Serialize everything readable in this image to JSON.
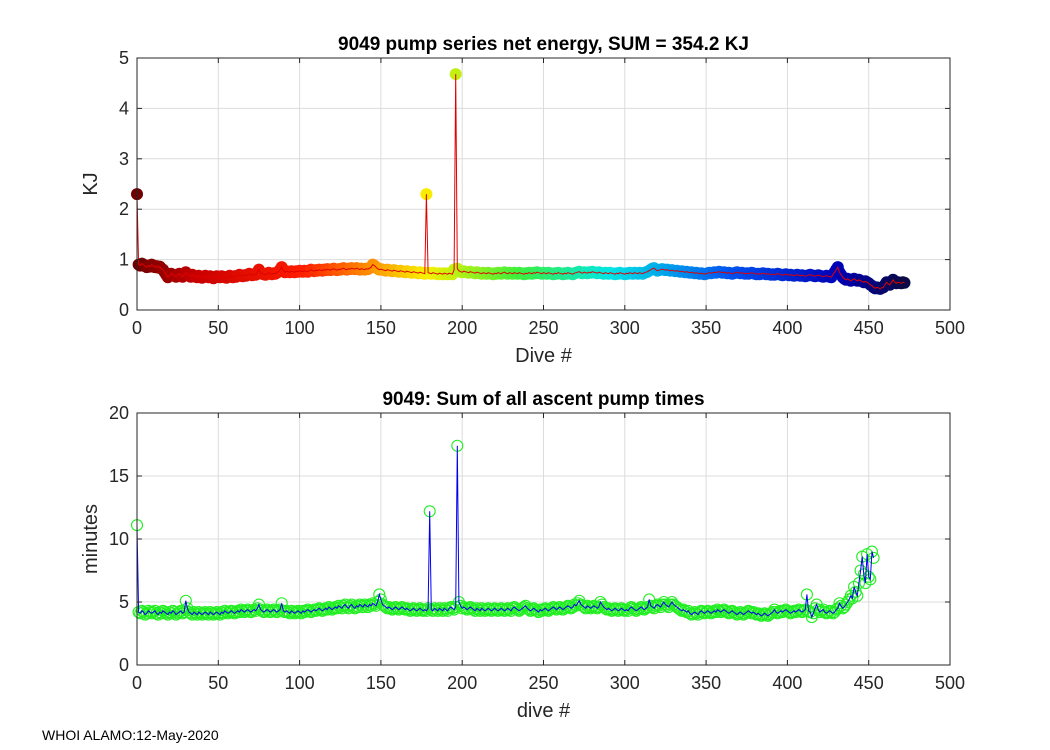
{
  "chart_data": [
    {
      "type": "scatter",
      "title": "9049 pump series net energy, SUM = 354.2 KJ",
      "xlabel": "Dive #",
      "ylabel": "KJ",
      "xlim": [
        0,
        500
      ],
      "ylim": [
        0,
        5
      ],
      "xticks": [
        0,
        50,
        100,
        150,
        200,
        250,
        300,
        350,
        400,
        450,
        500
      ],
      "yticks": [
        0,
        1,
        2,
        3,
        4,
        5
      ],
      "grid": true,
      "line_color": "#e00000",
      "marker_colormap": "jet",
      "x_step": 1,
      "series": [
        {
          "name": "net energy",
          "values": [
            2.3,
            0.9,
            0.88,
            0.92,
            0.9,
            0.87,
            0.85,
            0.88,
            0.86,
            0.9,
            0.88,
            0.85,
            0.87,
            0.84,
            0.86,
            0.82,
            0.8,
            0.75,
            0.7,
            0.65,
            0.68,
            0.72,
            0.7,
            0.68,
            0.66,
            0.7,
            0.72,
            0.68,
            0.66,
            0.7,
            0.75,
            0.7,
            0.68,
            0.66,
            0.7,
            0.68,
            0.66,
            0.65,
            0.68,
            0.66,
            0.64,
            0.66,
            0.68,
            0.66,
            0.65,
            0.67,
            0.65,
            0.63,
            0.65,
            0.67,
            0.66,
            0.65,
            0.67,
            0.66,
            0.65,
            0.64,
            0.66,
            0.68,
            0.66,
            0.65,
            0.67,
            0.66,
            0.68,
            0.7,
            0.68,
            0.67,
            0.69,
            0.68,
            0.7,
            0.72,
            0.7,
            0.69,
            0.71,
            0.7,
            0.75,
            0.8,
            0.74,
            0.72,
            0.71,
            0.7,
            0.72,
            0.74,
            0.72,
            0.71,
            0.73,
            0.72,
            0.74,
            0.76,
            0.8,
            0.85,
            0.78,
            0.75,
            0.77,
            0.76,
            0.75,
            0.77,
            0.76,
            0.75,
            0.77,
            0.76,
            0.78,
            0.77,
            0.76,
            0.78,
            0.77,
            0.76,
            0.78,
            0.8,
            0.78,
            0.77,
            0.79,
            0.78,
            0.8,
            0.79,
            0.78,
            0.8,
            0.79,
            0.81,
            0.8,
            0.79,
            0.81,
            0.82,
            0.8,
            0.79,
            0.81,
            0.8,
            0.82,
            0.83,
            0.81,
            0.8,
            0.82,
            0.81,
            0.83,
            0.82,
            0.81,
            0.83,
            0.82,
            0.8,
            0.82,
            0.81,
            0.8,
            0.82,
            0.81,
            0.83,
            0.85,
            0.9,
            0.88,
            0.85,
            0.82,
            0.8,
            0.81,
            0.8,
            0.79,
            0.78,
            0.8,
            0.79,
            0.78,
            0.77,
            0.79,
            0.78,
            0.77,
            0.76,
            0.78,
            0.77,
            0.76,
            0.75,
            0.77,
            0.76,
            0.75,
            0.74,
            0.76,
            0.75,
            0.74,
            0.73,
            0.75,
            0.74,
            0.73,
            0.72,
            2.3,
            0.74,
            0.73,
            0.72,
            0.74,
            0.73,
            0.72,
            0.71,
            0.73,
            0.72,
            0.71,
            0.73,
            0.72,
            0.71,
            0.73,
            0.72,
            0.71,
            0.8,
            4.68,
            0.82,
            0.78,
            0.76,
            0.75,
            0.77,
            0.76,
            0.75,
            0.74,
            0.76,
            0.75,
            0.74,
            0.73,
            0.75,
            0.74,
            0.73,
            0.72,
            0.74,
            0.73,
            0.72,
            0.74,
            0.73,
            0.72,
            0.71,
            0.73,
            0.72,
            0.74,
            0.73,
            0.72,
            0.74,
            0.75,
            0.73,
            0.72,
            0.74,
            0.73,
            0.72,
            0.74,
            0.73,
            0.72,
            0.74,
            0.73,
            0.72,
            0.71,
            0.73,
            0.72,
            0.74,
            0.73,
            0.72,
            0.74,
            0.73,
            0.75,
            0.74,
            0.73,
            0.72,
            0.74,
            0.73,
            0.72,
            0.74,
            0.73,
            0.72,
            0.71,
            0.73,
            0.72,
            0.74,
            0.73,
            0.72,
            0.71,
            0.73,
            0.72,
            0.74,
            0.73,
            0.72,
            0.71,
            0.73,
            0.74,
            0.75,
            0.76,
            0.74,
            0.73,
            0.75,
            0.74,
            0.73,
            0.75,
            0.74,
            0.76,
            0.75,
            0.74,
            0.73,
            0.75,
            0.74,
            0.73,
            0.72,
            0.74,
            0.73,
            0.72,
            0.74,
            0.73,
            0.72,
            0.71,
            0.73,
            0.72,
            0.74,
            0.73,
            0.72,
            0.71,
            0.73,
            0.72,
            0.74,
            0.73,
            0.72,
            0.74,
            0.73,
            0.72,
            0.74,
            0.73,
            0.72,
            0.74,
            0.75,
            0.76,
            0.78,
            0.8,
            0.82,
            0.83,
            0.8,
            0.78,
            0.79,
            0.8,
            0.81,
            0.8,
            0.79,
            0.8,
            0.79,
            0.78,
            0.79,
            0.78,
            0.77,
            0.78,
            0.77,
            0.76,
            0.77,
            0.76,
            0.75,
            0.76,
            0.75,
            0.74,
            0.75,
            0.74,
            0.73,
            0.74,
            0.73,
            0.72,
            0.73,
            0.72,
            0.71,
            0.72,
            0.73,
            0.74,
            0.73,
            0.74,
            0.75,
            0.74,
            0.75,
            0.76,
            0.75,
            0.74,
            0.75,
            0.74,
            0.73,
            0.74,
            0.73,
            0.72,
            0.73,
            0.74,
            0.75,
            0.74,
            0.73,
            0.74,
            0.73,
            0.72,
            0.73,
            0.72,
            0.73,
            0.74,
            0.73,
            0.72,
            0.71,
            0.72,
            0.71,
            0.72,
            0.73,
            0.72,
            0.71,
            0.72,
            0.71,
            0.7,
            0.71,
            0.7,
            0.71,
            0.72,
            0.71,
            0.7,
            0.69,
            0.7,
            0.71,
            0.7,
            0.69,
            0.7,
            0.69,
            0.68,
            0.69,
            0.7,
            0.69,
            0.68,
            0.69,
            0.68,
            0.67,
            0.68,
            0.69,
            0.7,
            0.69,
            0.68,
            0.67,
            0.68,
            0.69,
            0.68,
            0.67,
            0.66,
            0.67,
            0.68,
            0.67,
            0.66,
            0.65,
            0.7,
            0.75,
            0.8,
            0.85,
            0.75,
            0.7,
            0.65,
            0.62,
            0.6,
            0.62,
            0.6,
            0.58,
            0.6,
            0.62,
            0.6,
            0.58,
            0.6,
            0.58,
            0.57,
            0.55,
            0.57,
            0.55,
            0.53,
            0.5,
            0.48,
            0.45,
            0.43,
            0.45,
            0.44,
            0.42,
            0.44,
            0.45,
            0.5,
            0.55,
            0.52,
            0.5,
            0.55,
            0.6,
            0.55,
            0.53,
            0.55,
            0.54,
            0.53,
            0.55,
            0.54
          ]
        }
      ]
    },
    {
      "type": "scatter",
      "title": "9049: Sum of all ascent pump times",
      "xlabel": "dive #",
      "ylabel": "minutes",
      "xlim": [
        0,
        500
      ],
      "ylim": [
        0,
        20
      ],
      "xticks": [
        0,
        50,
        100,
        150,
        200,
        250,
        300,
        350,
        400,
        450,
        500
      ],
      "yticks": [
        0,
        5,
        10,
        15,
        20
      ],
      "grid": true,
      "line_color": "#0000ee",
      "marker_color": "#22ee22",
      "x_step": 1,
      "series": [
        {
          "name": "ascent pump time",
          "values": [
            11.1,
            4.2,
            4.1,
            4.3,
            4.2,
            4.0,
            4.1,
            4.3,
            4.2,
            4.1,
            4.2,
            4.3,
            4.1,
            4.0,
            4.2,
            4.1,
            4.3,
            4.2,
            4.1,
            4.0,
            4.2,
            4.1,
            4.3,
            4.2,
            4.0,
            4.1,
            4.2,
            4.3,
            4.1,
            4.2,
            5.1,
            4.5,
            4.2,
            4.1,
            4.0,
            4.2,
            4.1,
            4.0,
            4.2,
            4.1,
            4.0,
            4.1,
            4.2,
            4.1,
            4.0,
            4.2,
            4.1,
            4.0,
            4.1,
            4.2,
            4.1,
            4.0,
            4.2,
            4.1,
            4.3,
            4.2,
            4.1,
            4.2,
            4.3,
            4.2,
            4.1,
            4.2,
            4.3,
            4.2,
            4.4,
            4.3,
            4.2,
            4.3,
            4.4,
            4.3,
            4.2,
            4.3,
            4.4,
            4.3,
            4.5,
            4.8,
            4.4,
            4.3,
            4.2,
            4.3,
            4.4,
            4.3,
            4.2,
            4.3,
            4.4,
            4.3,
            4.2,
            4.3,
            4.4,
            4.9,
            4.3,
            4.2,
            4.3,
            4.2,
            4.1,
            4.3,
            4.2,
            4.1,
            4.2,
            4.3,
            4.2,
            4.1,
            4.3,
            4.2,
            4.3,
            4.4,
            4.3,
            4.2,
            4.3,
            4.4,
            4.3,
            4.4,
            4.5,
            4.4,
            4.3,
            4.4,
            4.5,
            4.4,
            4.6,
            4.5,
            4.4,
            4.5,
            4.6,
            4.5,
            4.7,
            4.6,
            4.5,
            4.7,
            4.8,
            4.6,
            4.5,
            4.7,
            4.8,
            4.6,
            4.5,
            4.7,
            4.6,
            4.8,
            4.7,
            4.6,
            4.8,
            4.7,
            4.6,
            4.8,
            4.7,
            4.9,
            4.8,
            4.7,
            5.0,
            5.6,
            5.2,
            4.8,
            4.7,
            4.6,
            4.5,
            4.6,
            4.5,
            4.4,
            4.5,
            4.6,
            4.5,
            4.4,
            4.5,
            4.6,
            4.5,
            4.4,
            4.5,
            4.4,
            4.3,
            4.4,
            4.5,
            4.4,
            4.3,
            4.4,
            4.5,
            4.4,
            4.3,
            4.4,
            4.3,
            4.5,
            12.2,
            4.4,
            4.3,
            4.5,
            4.4,
            4.3,
            4.5,
            4.4,
            4.3,
            4.5,
            4.4,
            4.3,
            4.5,
            4.6,
            4.5,
            4.4,
            4.6,
            17.4,
            5.0,
            4.7,
            4.5,
            4.6,
            4.5,
            4.4,
            4.5,
            4.6,
            4.5,
            4.4,
            4.3,
            4.5,
            4.4,
            4.3,
            4.5,
            4.4,
            4.3,
            4.4,
            4.5,
            4.4,
            4.3,
            4.4,
            4.5,
            4.4,
            4.3,
            4.4,
            4.5,
            4.4,
            4.3,
            4.4,
            4.5,
            4.4,
            4.3,
            4.5,
            4.6,
            4.5,
            4.4,
            4.3,
            4.4,
            4.5,
            4.6,
            4.7,
            4.5,
            4.4,
            4.3,
            4.4,
            4.5,
            4.4,
            4.3,
            4.2,
            4.4,
            4.3,
            4.4,
            4.5,
            4.4,
            4.3,
            4.4,
            4.5,
            4.6,
            4.5,
            4.4,
            4.5,
            4.6,
            4.5,
            4.4,
            4.5,
            4.6,
            4.7,
            4.6,
            4.5,
            4.6,
            4.8,
            4.7,
            4.9,
            5.1,
            4.8,
            4.7,
            4.6,
            4.5,
            4.7,
            4.6,
            4.5,
            4.6,
            4.7,
            4.6,
            4.5,
            4.6,
            5.0,
            4.8,
            4.6,
            4.5,
            4.4,
            4.5,
            4.4,
            4.3,
            4.4,
            4.5,
            4.4,
            4.3,
            4.4,
            4.5,
            4.4,
            4.3,
            4.4,
            4.3,
            4.5,
            4.6,
            4.5,
            4.4,
            4.3,
            4.4,
            4.5,
            4.6,
            4.5,
            4.4,
            4.5,
            4.6,
            5.2,
            4.7,
            4.6,
            4.5,
            4.7,
            4.8,
            4.7,
            4.6,
            4.8,
            5.0,
            4.8,
            4.7,
            4.6,
            4.8,
            5.0,
            4.8,
            4.7,
            4.6,
            4.5,
            4.4,
            4.3,
            4.4,
            4.3,
            4.2,
            4.3,
            4.1,
            4.0,
            4.1,
            4.2,
            4.1,
            4.0,
            4.2,
            4.3,
            4.2,
            4.1,
            4.2,
            4.3,
            4.2,
            4.1,
            4.2,
            4.3,
            4.2,
            4.4,
            4.3,
            4.2,
            4.3,
            4.4,
            4.3,
            4.2,
            4.1,
            4.2,
            4.3,
            4.2,
            4.1,
            4.0,
            4.1,
            4.2,
            4.1,
            4.0,
            4.1,
            4.2,
            4.3,
            4.2,
            4.1,
            4.2,
            4.1,
            4.0,
            4.1,
            4.0,
            3.9,
            4.0,
            4.1,
            4.0,
            3.9,
            4.0,
            4.1,
            4.2,
            4.4,
            4.2,
            4.1,
            4.2,
            4.3,
            4.2,
            4.3,
            4.4,
            4.3,
            4.2,
            4.1,
            4.2,
            4.3,
            4.2,
            4.3,
            4.4,
            4.3,
            4.2,
            4.3,
            4.4,
            5.6,
            4.3,
            4.2,
            3.8,
            4.1,
            4.5,
            4.8,
            4.4,
            4.2,
            4.3,
            4.4,
            4.2,
            4.1,
            4.2,
            4.3,
            4.2,
            4.1,
            4.2,
            4.4,
            4.5,
            4.9,
            4.7,
            4.5,
            4.6,
            4.8,
            5.0,
            5.2,
            5.5,
            5.3,
            6.2,
            5.8,
            5.5,
            6.5,
            7.5,
            8.6,
            7.2,
            6.5,
            8.8,
            7.0,
            6.8,
            9.0,
            8.5
          ]
        }
      ]
    }
  ],
  "footer": "WHOI ALAMO:12-May-2020"
}
